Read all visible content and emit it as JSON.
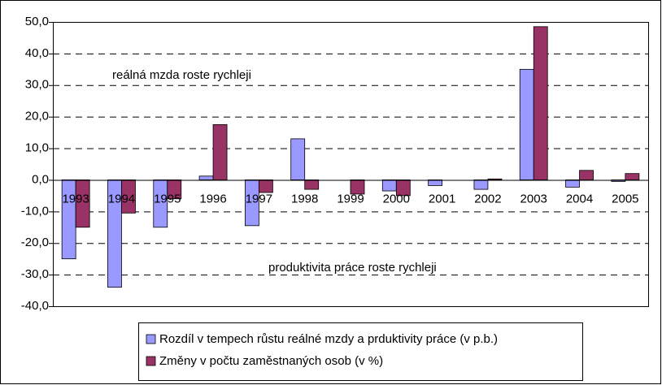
{
  "chart_data": {
    "type": "bar",
    "categories": [
      "1993",
      "1994",
      "1995",
      "1996",
      "1997",
      "1998",
      "1999",
      "2000",
      "2001",
      "2002",
      "2003",
      "2004",
      "2005"
    ],
    "series": [
      {
        "name": "Rozdíl v tempech růstu reálné mzdy a prduktivity práce (v p.b.)",
        "color": "#9999ff",
        "values": [
          -25,
          -34,
          -15,
          1.2,
          -14.5,
          13,
          0,
          -3.5,
          -1.8,
          -3,
          35,
          -2.3,
          -0.5
        ]
      },
      {
        "name": "Změny v počtu zaměstnaných osob (v %)",
        "color": "#993366",
        "values": [
          -15,
          -10.5,
          -6,
          17.5,
          -4,
          -3,
          -4.5,
          -5,
          0,
          0.3,
          48.5,
          3,
          2
        ]
      }
    ],
    "annotations": [
      "reálná mzda roste rychleji",
      "produktivita práce roste rychleji"
    ],
    "ylim": [
      -40,
      50
    ],
    "yticks": [
      {
        "value": -40,
        "label": "-40,0"
      },
      {
        "value": -30,
        "label": "-30,0"
      },
      {
        "value": -20,
        "label": "-20,0"
      },
      {
        "value": -10,
        "label": "-10,0"
      },
      {
        "value": 0,
        "label": "0,0"
      },
      {
        "value": 10,
        "label": "10,0"
      },
      {
        "value": 20,
        "label": "20,0"
      },
      {
        "value": 30,
        "label": "30,0"
      },
      {
        "value": 40,
        "label": "40,0"
      },
      {
        "value": 50,
        "label": "50,0"
      }
    ],
    "grid": true
  }
}
